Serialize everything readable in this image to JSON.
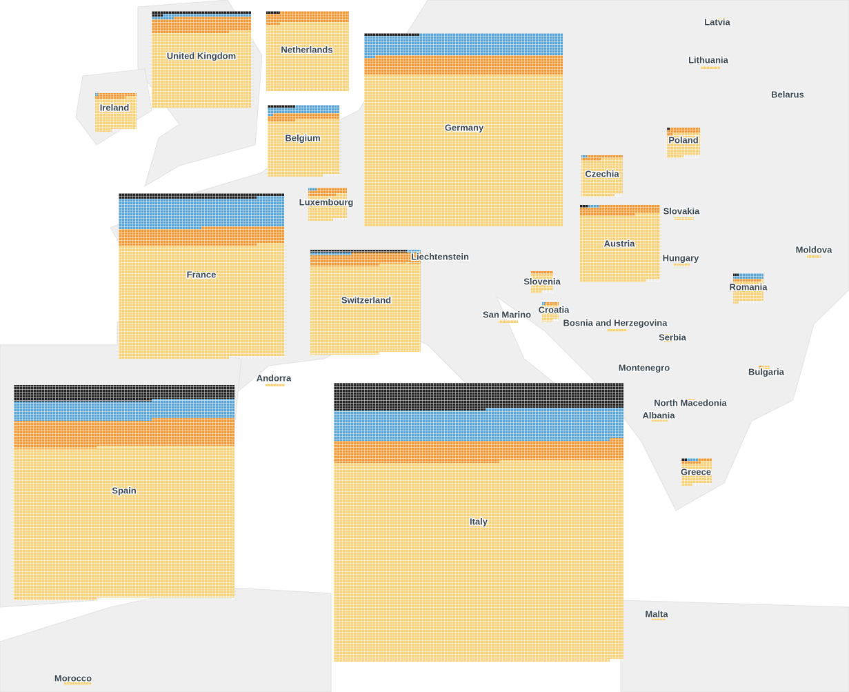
{
  "colors": [
    "#222222",
    "#5aa4d6",
    "#f39a38",
    "#f8d27a"
  ],
  "countries": [
    {
      "name": "Germany",
      "values": [
        20,
        560,
        500,
        3960
      ]
    },
    {
      "name": "Italy",
      "values": [
        1000,
        1200,
        800,
        7600
      ]
    },
    {
      "name": "Spain",
      "values": [
        450,
        560,
        780,
        4400
      ]
    },
    {
      "name": "France",
      "values": [
        110,
        640,
        380,
        2450
      ]
    },
    {
      "name": "United Kingdom",
      "values": [
        40,
        40,
        200,
        980
      ]
    },
    {
      "name": "Netherlands",
      "values": [
        5,
        0,
        120,
        745
      ]
    },
    {
      "name": "Belgium",
      "values": [
        10,
        70,
        60,
        530
      ]
    },
    {
      "name": "Switzerland",
      "values": [
        35,
        20,
        170,
        1280
      ]
    },
    {
      "name": "Austria",
      "values": [
        3,
        4,
        100,
        700
      ]
    },
    {
      "name": "Ireland",
      "values": [
        0,
        1,
        25,
        175
      ]
    },
    {
      "name": "Czechia",
      "values": [
        0,
        2,
        20,
        200
      ]
    },
    {
      "name": "Luxembourg",
      "values": [
        0,
        3,
        35,
        125
      ]
    },
    {
      "name": "Poland",
      "values": [
        1,
        0,
        25,
        100
      ]
    },
    {
      "name": "Romania",
      "values": [
        2,
        20,
        10,
        80
      ]
    },
    {
      "name": "Greece",
      "values": [
        2,
        4,
        12,
        85
      ]
    },
    {
      "name": "Slovenia",
      "values": [
        0,
        0,
        8,
        52
      ]
    },
    {
      "name": "Croatia",
      "values": [
        0,
        1,
        5,
        34
      ]
    },
    {
      "name": "Latvia",
      "values": [
        0,
        0,
        0,
        3
      ]
    },
    {
      "name": "Lithuania",
      "values": [
        0,
        0,
        0,
        7
      ]
    },
    {
      "name": "Belarus",
      "values": [
        0,
        0,
        0,
        1
      ]
    },
    {
      "name": "Moldova",
      "values": [
        0,
        0,
        0,
        5
      ]
    },
    {
      "name": "Slovakia",
      "values": [
        0,
        0,
        0,
        7
      ]
    },
    {
      "name": "Hungary",
      "values": [
        0,
        0,
        0,
        6
      ]
    },
    {
      "name": "Bosnia and Herzegovina",
      "values": [
        0,
        0,
        0,
        7
      ]
    },
    {
      "name": "Serbia",
      "values": [
        0,
        0,
        1,
        12
      ]
    },
    {
      "name": "Montenegro",
      "values": [
        0,
        0,
        0,
        1
      ]
    },
    {
      "name": "Bulgaria",
      "values": [
        0,
        0,
        1,
        7
      ]
    },
    {
      "name": "North Macedonia",
      "values": [
        0,
        0,
        0,
        3
      ]
    },
    {
      "name": "Albania",
      "values": [
        0,
        0,
        0,
        6
      ]
    },
    {
      "name": "Malta",
      "values": [
        0,
        0,
        0,
        5
      ]
    },
    {
      "name": "San Marino",
      "values": [
        0,
        0,
        0,
        7
      ]
    },
    {
      "name": "Andorra",
      "values": [
        0,
        0,
        0,
        7
      ]
    },
    {
      "name": "Liechtenstein",
      "values": [
        0,
        0,
        0,
        1
      ]
    },
    {
      "name": "Morocco",
      "values": [
        0,
        0,
        0,
        10
      ]
    }
  ]
}
